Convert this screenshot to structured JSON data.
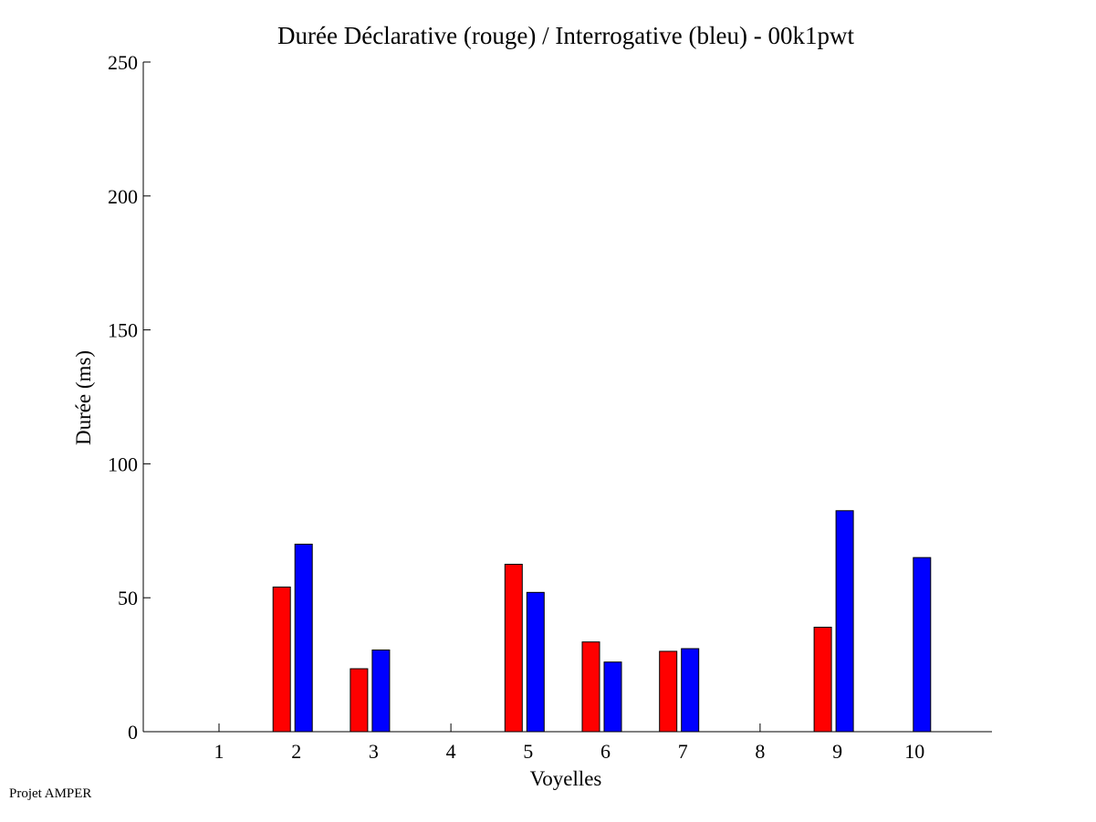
{
  "footer": "Projet AMPER",
  "chart_data": {
    "type": "bar",
    "title": "Durée Déclarative (rouge) / Interrogative (bleu) - 00k1pwt",
    "xlabel": "Voyelles",
    "ylabel": "Durée (ms)",
    "categories": [
      "1",
      "2",
      "3",
      "4",
      "5",
      "6",
      "7",
      "8",
      "9",
      "10"
    ],
    "ylim": [
      0,
      250
    ],
    "yticks": [
      0,
      50,
      100,
      150,
      200,
      250
    ],
    "grid": false,
    "series": [
      {
        "color": "#ff0000",
        "values": [
          0,
          54,
          23.5,
          0,
          62.5,
          33.5,
          30,
          0,
          39,
          0
        ]
      },
      {
        "color": "#0000ff",
        "values": [
          0,
          70,
          30.5,
          0,
          52,
          26,
          31,
          0,
          82.5,
          65
        ]
      }
    ]
  }
}
